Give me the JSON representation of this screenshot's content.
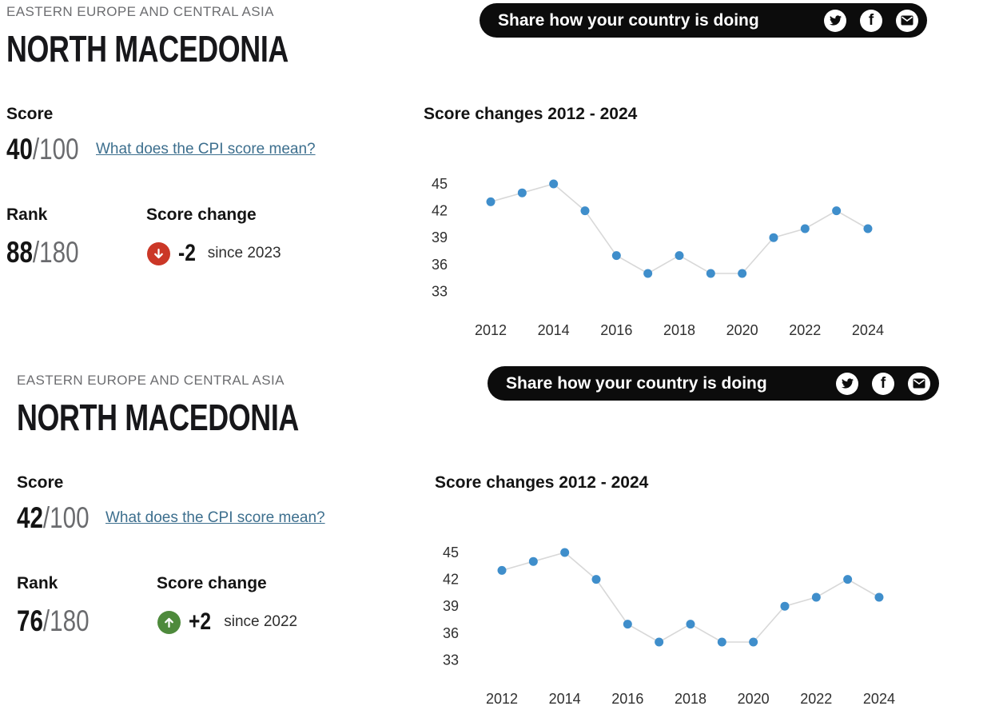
{
  "sections": [
    {
      "region": "EASTERN EUROPE AND CENTRAL ASIA",
      "country": "NORTH MACEDONIA",
      "score_label": "Score",
      "score_value": "40",
      "score_denominator": "/100",
      "cpi_link": "What does the CPI score mean?",
      "rank_label": "Rank",
      "rank_value": "88",
      "rank_denominator": "/180",
      "score_change_label": "Score change",
      "score_change_direction": "down",
      "score_change_value": "-2",
      "score_change_since": "since 2023",
      "share_label": "Share how your country is doing",
      "chart_title": "Score changes 2012 - 2024"
    },
    {
      "region": "EASTERN EUROPE AND CENTRAL ASIA",
      "country": "NORTH MACEDONIA",
      "score_label": "Score",
      "score_value": "42",
      "score_denominator": "/100",
      "cpi_link": "What does the CPI score mean?",
      "rank_label": "Rank",
      "rank_value": "76",
      "rank_denominator": "/180",
      "score_change_label": "Score change",
      "score_change_direction": "up",
      "score_change_value": "+2",
      "score_change_since": "since 2022",
      "share_label": "Share how your country is doing",
      "chart_title": "Score changes 2012 - 2024"
    }
  ],
  "colors": {
    "down_red": "#cb3727",
    "up_green": "#4e8a3c",
    "link_teal": "#3d6f8e",
    "pill_black": "#0c0c0c",
    "dot_blue": "#3f8ecb",
    "line_gray": "#d8d8d8"
  },
  "chart_data": [
    {
      "type": "line",
      "title": "Score changes 2012 - 2024",
      "x": [
        2012,
        2013,
        2014,
        2015,
        2016,
        2017,
        2018,
        2019,
        2020,
        2021,
        2022,
        2023,
        2024
      ],
      "values": [
        43,
        44,
        45,
        42,
        37,
        35,
        37,
        35,
        35,
        39,
        40,
        42,
        40
      ],
      "xticks": [
        2012,
        2014,
        2016,
        2018,
        2020,
        2022,
        2024
      ],
      "yticks": [
        45,
        42,
        39,
        36,
        33
      ],
      "ylim": [
        31,
        47
      ],
      "grid": false,
      "legend": "none",
      "xlabel": "",
      "ylabel": ""
    },
    {
      "type": "line",
      "title": "Score changes 2012 - 2024",
      "x": [
        2012,
        2013,
        2014,
        2015,
        2016,
        2017,
        2018,
        2019,
        2020,
        2021,
        2022,
        2023,
        2024
      ],
      "values": [
        43,
        44,
        45,
        42,
        37,
        35,
        37,
        35,
        35,
        39,
        40,
        42,
        40
      ],
      "xticks": [
        2012,
        2014,
        2016,
        2018,
        2020,
        2022,
        2024
      ],
      "yticks": [
        45,
        42,
        39,
        36,
        33
      ],
      "ylim": [
        31,
        47
      ],
      "grid": false,
      "legend": "none",
      "xlabel": "",
      "ylabel": ""
    }
  ]
}
